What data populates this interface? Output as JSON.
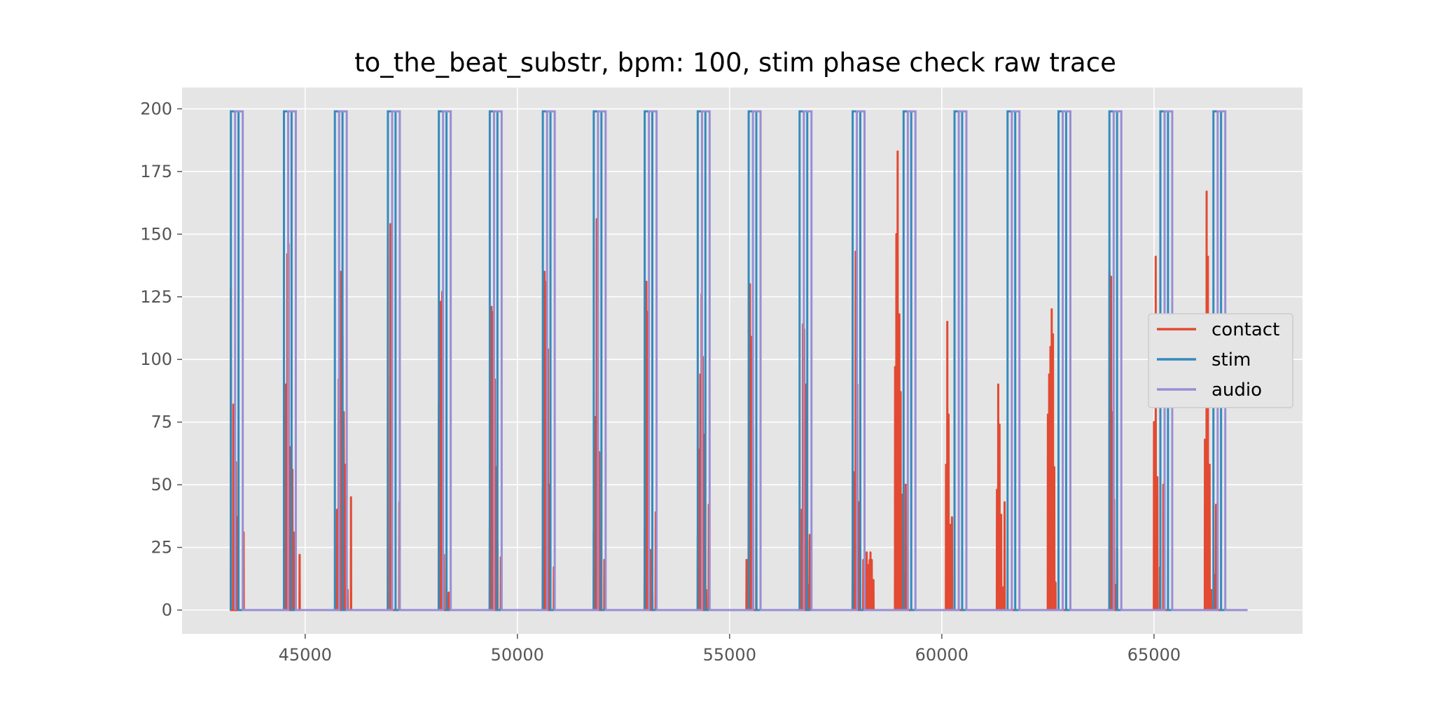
{
  "chart_data": {
    "type": "line",
    "title": "to_the_beat_substr, bpm: 100, stim phase check raw trace",
    "xlabel": "",
    "ylabel": "",
    "xlim": [
      42100,
      68500
    ],
    "ylim": [
      -9.5,
      208.5
    ],
    "xticks": [
      45000,
      50000,
      55000,
      60000,
      65000
    ],
    "xtick_labels": [
      "45000",
      "50000",
      "55000",
      "60000",
      "65000"
    ],
    "yticks": [
      0,
      25,
      50,
      75,
      100,
      125,
      150,
      175,
      200
    ],
    "ytick_labels": [
      "0",
      "25",
      "50",
      "75",
      "100",
      "125",
      "150",
      "175",
      "200"
    ],
    "grid": true,
    "background": "#e5e5e5",
    "legend": {
      "placement": "center-right",
      "entries": [
        "contact",
        "stim",
        "audio"
      ]
    },
    "pulse_level": 199,
    "pulse_width": 180,
    "audio_offset": 100,
    "pulse_starts": [
      43250,
      44500,
      45700,
      46950,
      48150,
      49350,
      50600,
      51800,
      53000,
      54250,
      55450,
      56650,
      57900,
      59100,
      60300,
      61550,
      62750,
      63950,
      65150,
      66400
    ],
    "x_end": 67200,
    "contact_bursts": [
      {
        "x": 43250,
        "peaks": [
          [
            0,
            128
          ],
          [
            60,
            82
          ],
          [
            120,
            59
          ],
          [
            150,
            37
          ],
          [
            300,
            31
          ]
        ]
      },
      {
        "x": 44500,
        "peaks": [
          [
            40,
            90
          ],
          [
            80,
            142
          ],
          [
            110,
            146
          ],
          [
            150,
            65
          ],
          [
            200,
            56
          ],
          [
            230,
            31
          ],
          [
            260,
            8
          ],
          [
            370,
            22
          ]
        ]
      },
      {
        "x": 45750,
        "peaks": [
          [
            0,
            40
          ],
          [
            40,
            92
          ],
          [
            90,
            135
          ],
          [
            130,
            109
          ],
          [
            160,
            79
          ],
          [
            190,
            58
          ],
          [
            250,
            8
          ],
          [
            330,
            45
          ]
        ]
      },
      {
        "x": 46950,
        "peaks": [
          [
            0,
            150
          ],
          [
            60,
            154
          ],
          [
            80,
            110
          ],
          [
            270,
            43
          ]
        ]
      },
      {
        "x": 48150,
        "peaks": [
          [
            0,
            83
          ],
          [
            40,
            123
          ],
          [
            80,
            127
          ],
          [
            120,
            22
          ],
          [
            230,
            7
          ]
        ]
      },
      {
        "x": 49350,
        "peaks": [
          [
            0,
            33
          ],
          [
            40,
            121
          ],
          [
            80,
            119
          ],
          [
            120,
            92
          ],
          [
            150,
            57
          ],
          [
            180,
            27
          ],
          [
            260,
            21
          ]
        ]
      },
      {
        "x": 50600,
        "peaks": [
          [
            0,
            48
          ],
          [
            40,
            135
          ],
          [
            80,
            131
          ],
          [
            120,
            104
          ],
          [
            160,
            50
          ],
          [
            260,
            17
          ]
        ]
      },
      {
        "x": 51800,
        "peaks": [
          [
            0,
            32
          ],
          [
            30,
            77
          ],
          [
            70,
            156
          ],
          [
            100,
            119
          ],
          [
            130,
            63
          ],
          [
            160,
            28
          ],
          [
            250,
            20
          ]
        ]
      },
      {
        "x": 53000,
        "peaks": [
          [
            0,
            32
          ],
          [
            40,
            131
          ],
          [
            80,
            119
          ],
          [
            130,
            24
          ],
          [
            180,
            8
          ],
          [
            260,
            39
          ]
        ]
      },
      {
        "x": 54250,
        "peaks": [
          [
            0,
            30
          ],
          [
            30,
            64
          ],
          [
            60,
            94
          ],
          [
            90,
            126
          ],
          [
            120,
            101
          ],
          [
            150,
            70
          ],
          [
            170,
            42
          ],
          [
            200,
            8
          ],
          [
            260,
            42
          ]
        ]
      },
      {
        "x": 55450,
        "peaks": [
          [
            -50,
            20
          ],
          [
            0,
            55
          ],
          [
            30,
            130
          ],
          [
            60,
            109
          ],
          [
            100,
            73
          ],
          [
            180,
            61
          ]
        ]
      },
      {
        "x": 56700,
        "peaks": [
          [
            0,
            40
          ],
          [
            30,
            114
          ],
          [
            60,
            112
          ],
          [
            90,
            90
          ],
          [
            110,
            55
          ],
          [
            130,
            28
          ],
          [
            150,
            10
          ],
          [
            190,
            30
          ]
        ]
      },
      {
        "x": 57900,
        "peaks": [
          [
            0,
            20
          ],
          [
            30,
            55
          ],
          [
            70,
            143
          ],
          [
            110,
            90
          ],
          [
            150,
            43
          ],
          [
            250,
            20
          ],
          [
            330,
            23
          ],
          [
            370,
            18
          ],
          [
            400,
            20
          ],
          [
            420,
            23
          ],
          [
            450,
            20
          ],
          [
            490,
            12
          ]
        ]
      },
      {
        "x": 58900,
        "peaks": [
          [
            0,
            97
          ],
          [
            30,
            150
          ],
          [
            60,
            183
          ],
          [
            100,
            118
          ],
          [
            130,
            87
          ],
          [
            170,
            46
          ],
          [
            210,
            14
          ],
          [
            250,
            50
          ]
        ]
      },
      {
        "x": 60100,
        "peaks": [
          [
            0,
            58
          ],
          [
            30,
            115
          ],
          [
            60,
            78
          ],
          [
            100,
            34
          ],
          [
            140,
            37
          ]
        ]
      },
      {
        "x": 61300,
        "peaks": [
          [
            0,
            48
          ],
          [
            30,
            90
          ],
          [
            60,
            74
          ],
          [
            100,
            38
          ],
          [
            140,
            9
          ],
          [
            180,
            43
          ]
        ]
      },
      {
        "x": 62500,
        "peaks": [
          [
            0,
            78
          ],
          [
            30,
            94
          ],
          [
            60,
            105
          ],
          [
            90,
            120
          ],
          [
            120,
            110
          ],
          [
            150,
            57
          ],
          [
            180,
            11
          ]
        ]
      },
      {
        "x": 63950,
        "peaks": [
          [
            0,
            135
          ],
          [
            40,
            133
          ],
          [
            80,
            79
          ],
          [
            110,
            44
          ],
          [
            140,
            10
          ],
          [
            180,
            25
          ]
        ]
      },
      {
        "x": 65000,
        "peaks": [
          [
            0,
            75
          ],
          [
            40,
            141
          ],
          [
            80,
            53
          ],
          [
            140,
            17
          ],
          [
            220,
            50
          ]
        ]
      },
      {
        "x": 66200,
        "peaks": [
          [
            0,
            68
          ],
          [
            40,
            167
          ],
          [
            70,
            141
          ],
          [
            110,
            58
          ],
          [
            150,
            8
          ],
          [
            230,
            14
          ],
          [
            260,
            42
          ]
        ]
      }
    ],
    "series": [
      {
        "name": "contact",
        "color": "#e24a33"
      },
      {
        "name": "stim",
        "color": "#348abd"
      },
      {
        "name": "audio",
        "color": "#988ed5"
      }
    ]
  }
}
